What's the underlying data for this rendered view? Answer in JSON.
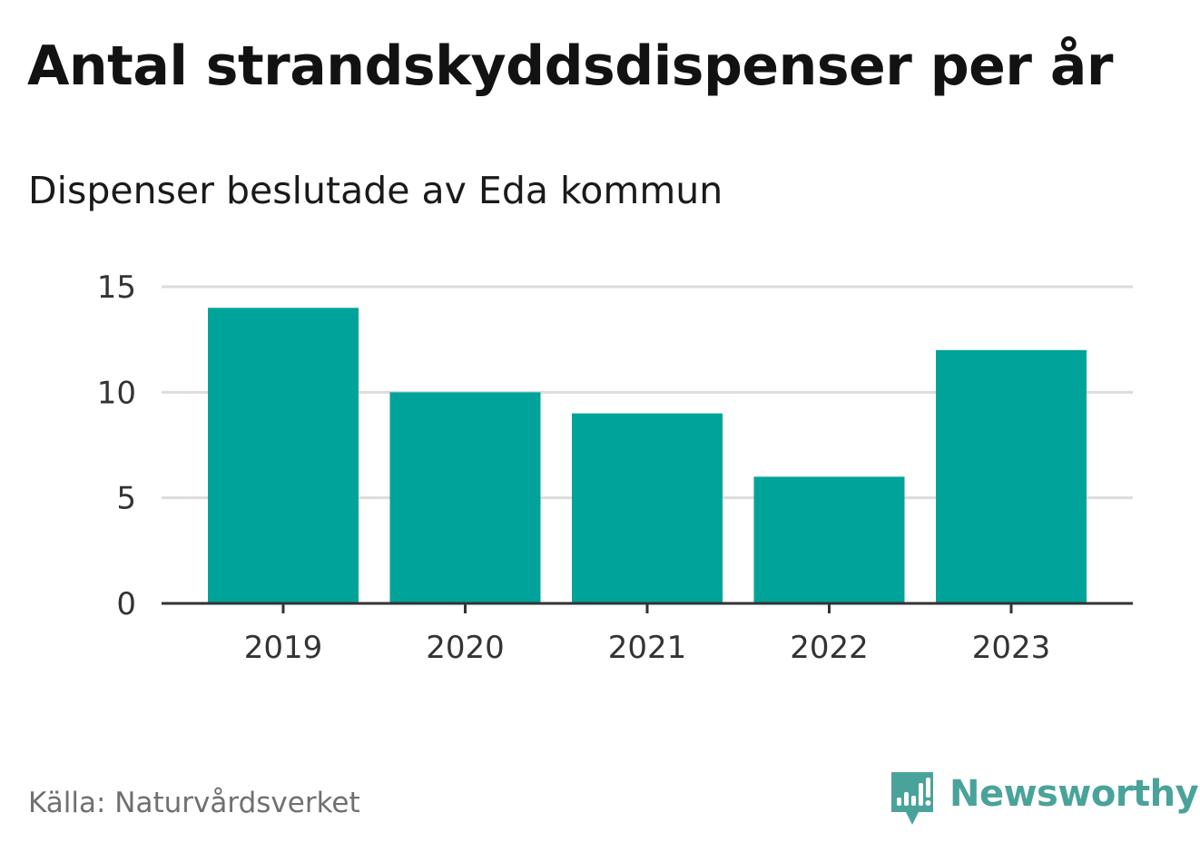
{
  "header": {
    "title": "Antal strandskyddsdispenser per år",
    "subtitle": "Dispenser beslutade av Eda kommun"
  },
  "footer": {
    "source": "Källa: Naturvårdsverket",
    "brand": "Newsworthy",
    "brand_icon": "newsworthy-logo-icon",
    "brand_color": "#4aa39b"
  },
  "chart_data": {
    "type": "bar",
    "title": "Antal strandskyddsdispenser per år",
    "subtitle": "Dispenser beslutade av Eda kommun",
    "categories": [
      "2019",
      "2020",
      "2021",
      "2022",
      "2023"
    ],
    "values": [
      14,
      10,
      9,
      6,
      12
    ],
    "xlabel": "",
    "ylabel": "",
    "ylim": [
      0,
      15
    ],
    "yticks": [
      0,
      5,
      10,
      15
    ],
    "grid": true,
    "legend": "none",
    "bar_color": "#00a39a",
    "grid_color": "#dcdcdc",
    "axis_color": "#333333"
  }
}
